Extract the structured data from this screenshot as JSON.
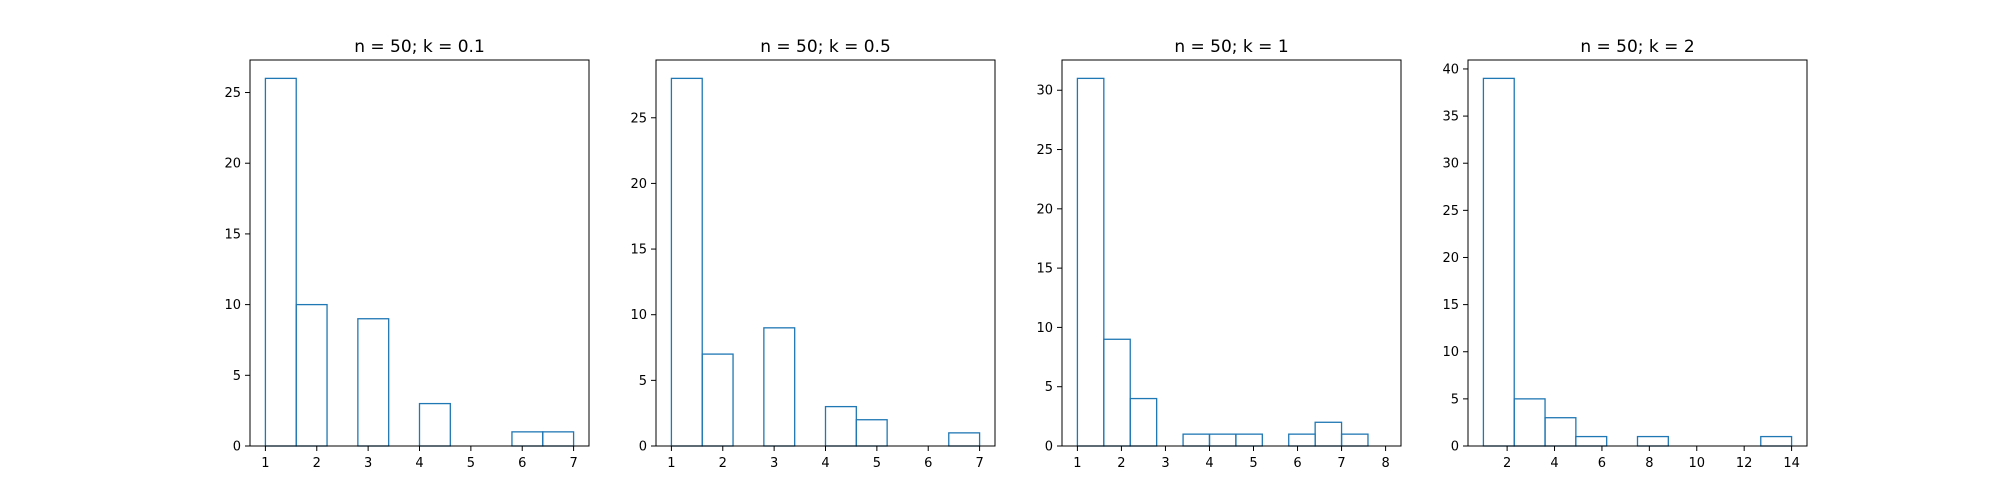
{
  "style": {
    "line_color": "#1f77b4",
    "background": "#ffffff"
  },
  "chart_data": [
    {
      "type": "bar",
      "histtype": "step",
      "title": "n = 50; k = 0.1",
      "xlabel": "",
      "ylabel": "",
      "xlim": [
        0.7,
        7.3
      ],
      "ylim": [
        0,
        27.3
      ],
      "xticks": [
        1,
        2,
        3,
        4,
        5,
        6,
        7
      ],
      "yticks": [
        0,
        5,
        10,
        15,
        20,
        25
      ],
      "bin_edges": [
        1.0,
        1.6,
        2.2,
        2.8,
        3.4,
        4.0,
        4.6,
        5.2,
        5.8,
        6.4,
        7.0
      ],
      "values": [
        26,
        10,
        0,
        9,
        0,
        3,
        0,
        0,
        1,
        1
      ],
      "grid": false,
      "legend": "none"
    },
    {
      "type": "bar",
      "histtype": "step",
      "title": "n = 50; k = 0.5",
      "xlabel": "",
      "ylabel": "",
      "xlim": [
        0.7,
        7.3
      ],
      "ylim": [
        0,
        29.4
      ],
      "xticks": [
        1,
        2,
        3,
        4,
        5,
        6,
        7
      ],
      "yticks": [
        0,
        5,
        10,
        15,
        20,
        25
      ],
      "bin_edges": [
        1.0,
        1.6,
        2.2,
        2.8,
        3.4,
        4.0,
        4.6,
        5.2,
        5.8,
        6.4,
        7.0
      ],
      "values": [
        28,
        7,
        0,
        9,
        0,
        3,
        2,
        0,
        0,
        1
      ],
      "grid": false,
      "legend": "none"
    },
    {
      "type": "bar",
      "histtype": "step",
      "title": "n = 50; k = 1",
      "xlabel": "",
      "ylabel": "",
      "xlim": [
        0.65,
        8.35
      ],
      "ylim": [
        0,
        32.55
      ],
      "xticks": [
        1,
        2,
        3,
        4,
        5,
        6,
        7,
        8
      ],
      "yticks": [
        0,
        5,
        10,
        15,
        20,
        25,
        30
      ],
      "bin_edges": [
        1.0,
        1.6,
        2.2,
        2.8,
        3.4,
        4.0,
        4.6,
        5.2,
        5.8,
        6.4,
        7.0,
        7.6,
        8.2
      ],
      "values": [
        31,
        9,
        4,
        0,
        1,
        1,
        1,
        0,
        1,
        2,
        1,
        0
      ],
      "grid": false,
      "legend": "none"
    },
    {
      "type": "bar",
      "histtype": "step",
      "title": "n = 50; k = 2",
      "xlabel": "",
      "ylabel": "",
      "xlim": [
        0.35,
        14.65
      ],
      "ylim": [
        0,
        40.95
      ],
      "xticks": [
        2,
        4,
        6,
        8,
        10,
        12,
        14
      ],
      "yticks": [
        0,
        5,
        10,
        15,
        20,
        25,
        30,
        35,
        40
      ],
      "bin_edges": [
        1.0,
        2.3,
        3.6,
        4.9,
        6.2,
        7.5,
        8.8,
        10.1,
        11.4,
        12.7,
        14.0
      ],
      "values": [
        39,
        5,
        3,
        1,
        0,
        1,
        0,
        0,
        0,
        1
      ],
      "grid": false,
      "legend": "none"
    }
  ]
}
